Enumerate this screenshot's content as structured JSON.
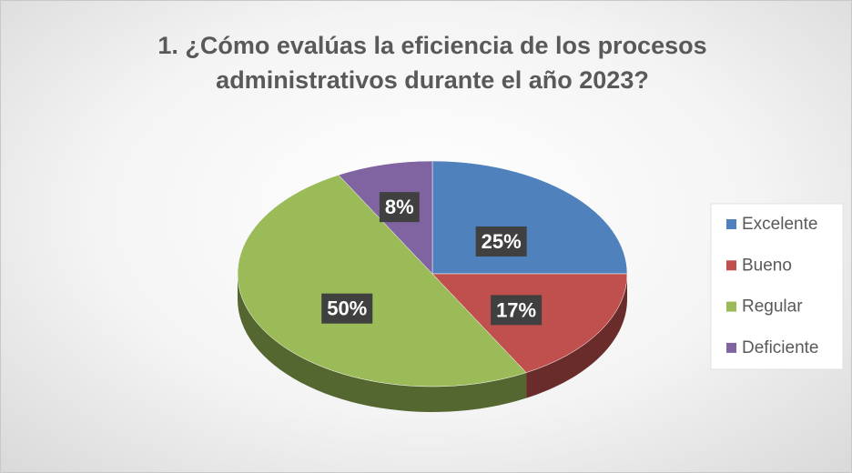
{
  "chart_data": {
    "type": "pie",
    "title": "1. ¿Cómo evalúas la eficiencia de los procesos administrativos durante el año 2023?",
    "categories": [
      "Excelente",
      "Bueno",
      "Regular",
      "Deficiente"
    ],
    "values": [
      25,
      17,
      50,
      8
    ],
    "value_labels": [
      "25%",
      "17%",
      "50%",
      "8%"
    ],
    "colors": [
      "#4f81bd",
      "#c0504d",
      "#9bbb59",
      "#8064a2"
    ],
    "legend": "right"
  }
}
